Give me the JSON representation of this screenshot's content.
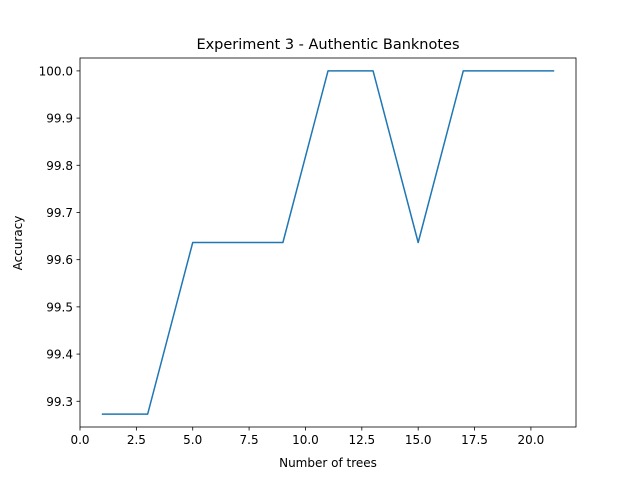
{
  "chart_data": {
    "type": "line",
    "title": "Experiment 3 - Authentic Banknotes",
    "xlabel": "Number of trees",
    "ylabel": "Accuracy",
    "xlim": [
      0,
      22
    ],
    "ylim": [
      99.2455,
      100.0273
    ],
    "xticks": [
      0.0,
      2.5,
      5.0,
      7.5,
      10.0,
      12.5,
      15.0,
      17.5,
      20.0
    ],
    "xtick_labels": [
      "0.0",
      "2.5",
      "5.0",
      "7.5",
      "10.0",
      "12.5",
      "15.0",
      "17.5",
      "20.0"
    ],
    "yticks": [
      99.3,
      99.4,
      99.5,
      99.6,
      99.7,
      99.8,
      99.9,
      100.0
    ],
    "ytick_labels": [
      "99.3",
      "99.4",
      "99.5",
      "99.6",
      "99.7",
      "99.8",
      "99.9",
      "100.0"
    ],
    "grid": false,
    "series": [
      {
        "color": "#1f77b4",
        "x": [
          1,
          3,
          5,
          7,
          9,
          11,
          13,
          15,
          17,
          19,
          21
        ],
        "y": [
          99.2727,
          99.2727,
          99.6364,
          99.6364,
          99.6364,
          100.0,
          100.0,
          99.6364,
          100.0,
          100.0,
          100.0
        ]
      }
    ]
  }
}
